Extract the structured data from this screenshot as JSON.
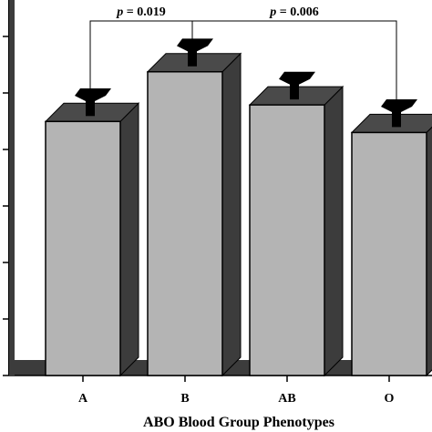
{
  "chart_data": {
    "type": "bar",
    "style": "3d",
    "categories": [
      "A",
      "B",
      "AB",
      "O"
    ],
    "values": [
      8.1,
      9.0,
      8.4,
      7.9
    ],
    "errors": [
      0.6,
      0.6,
      0.6,
      0.6
    ],
    "xlabel": "ABO Blood Group Phenotypes",
    "ylabel": "",
    "ylim": [
      3.5,
      10.3
    ],
    "grid": false,
    "colors": {
      "bar": "#b4b4b4",
      "bar_side": "#3c3c3c",
      "bar_top": "#4a4a4a",
      "floor": "#3c3c3c",
      "error": "#000000"
    },
    "annotations": [
      {
        "from": "A",
        "to": "B",
        "p_symbol": "p",
        "p_rest": " = 0.019"
      },
      {
        "from": "B",
        "to": "O",
        "p_symbol": "p",
        "p_rest": " = 0.006"
      }
    ]
  }
}
